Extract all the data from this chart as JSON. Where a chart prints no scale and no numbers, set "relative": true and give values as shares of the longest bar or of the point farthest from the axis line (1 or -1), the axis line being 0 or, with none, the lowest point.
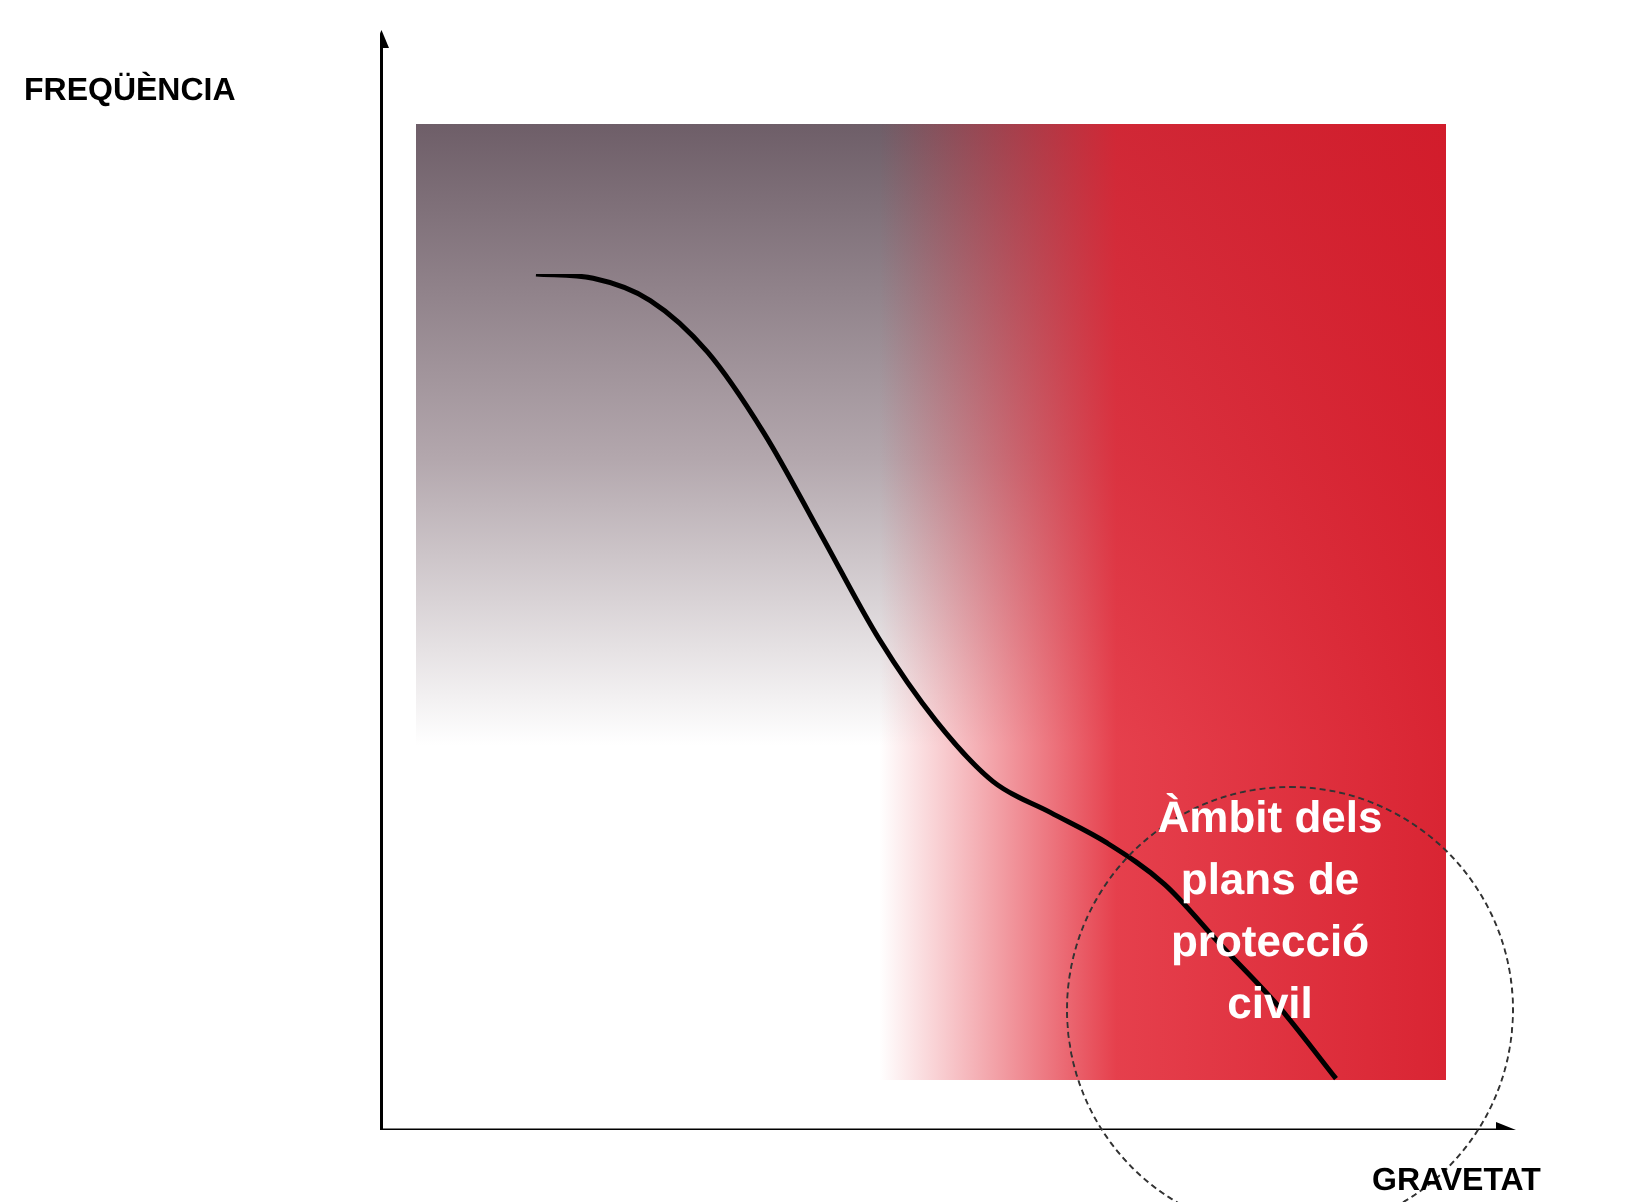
{
  "chart_data": {
    "type": "line",
    "relative": true,
    "xlabel": "GRAVETAT",
    "categories": [
      null,
      null,
      null,
      null,
      null,
      null,
      null,
      null,
      null,
      null,
      null,
      null,
      null,
      null,
      null
    ],
    "values": [
      1,
      0.995,
      0.969,
      0.909,
      0.813,
      0.694,
      0.574,
      0.478,
      0.407,
      0.371,
      0.335,
      0.287,
      0.215,
      0.144,
      0.06
    ],
    "color": "#000000",
    "marker": "none",
    "annotations": [
      "FREQÜÈNCIA",
      "Àmbit dels plans de protecció civil"
    ]
  }
}
